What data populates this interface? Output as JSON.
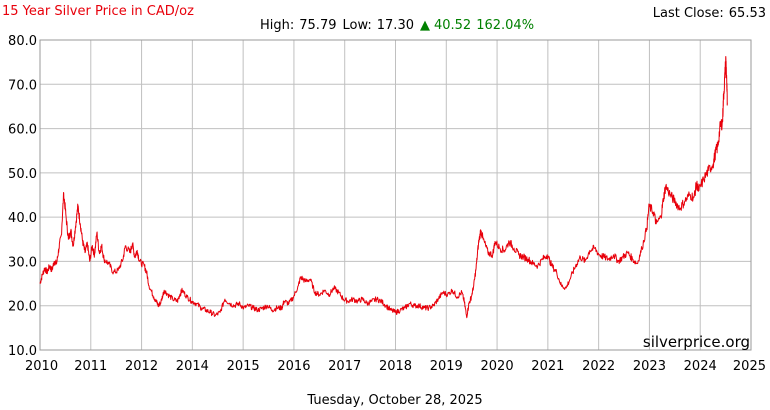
{
  "header": {
    "title": "15 Year Silver Price in CAD/oz",
    "last_close_label": "Last Close:",
    "last_close_value": "65.53",
    "high_label": "High:",
    "high_value": "75.79",
    "low_label": "Low:",
    "low_value": "17.30",
    "change_arrow": "▲",
    "change_value": "40.52",
    "change_percent": "162.04%"
  },
  "footer": {
    "date": "Tuesday, October 28, 2025",
    "source": "silverprice.org"
  },
  "colors": {
    "title": "#e8000b",
    "line": "#e8000b",
    "change_up": "#008000",
    "grid": "#c0c0c0"
  },
  "chart_data": {
    "type": "line",
    "title": "15 Year Silver Price in CAD/oz",
    "xlabel": "",
    "ylabel": "",
    "xlim": [
      2010.0,
      2025.0
    ],
    "ylim": [
      10.0,
      80.0
    ],
    "grid": true,
    "legend": "none",
    "x_ticks": [
      2010,
      2011,
      2012,
      2014,
      2015,
      2016,
      2017,
      2018,
      2019,
      2020,
      2021,
      2022,
      2023,
      2024,
      2025
    ],
    "y_ticks": [
      "10.0",
      "20.0",
      "30.0",
      "40.0",
      "50.0",
      "60.0",
      "70.0",
      "80.0"
    ],
    "series": [
      {
        "values": [
          [
            2010.0,
            25.0
          ],
          [
            2010.05,
            27.0
          ],
          [
            2010.1,
            28.5
          ],
          [
            2010.15,
            27.5
          ],
          [
            2010.2,
            29.0
          ],
          [
            2010.25,
            28.0
          ],
          [
            2010.3,
            30.0
          ],
          [
            2010.35,
            29.5
          ],
          [
            2010.4,
            33.0
          ],
          [
            2010.45,
            36.0
          ],
          [
            2010.5,
            45.5
          ],
          [
            2010.55,
            40.0
          ],
          [
            2010.6,
            35.0
          ],
          [
            2010.65,
            37.0
          ],
          [
            2010.7,
            33.5
          ],
          [
            2010.75,
            38.0
          ],
          [
            2010.8,
            42.5
          ],
          [
            2010.85,
            38.5
          ],
          [
            2010.9,
            34.5
          ],
          [
            2010.95,
            32.0
          ],
          [
            2011.0,
            34.0
          ],
          [
            2011.05,
            30.0
          ],
          [
            2011.1,
            33.5
          ],
          [
            2011.15,
            31.5
          ],
          [
            2011.2,
            36.5
          ],
          [
            2011.25,
            32.0
          ],
          [
            2011.3,
            33.5
          ],
          [
            2011.35,
            30.5
          ],
          [
            2011.45,
            29.5
          ],
          [
            2011.55,
            27.5
          ],
          [
            2011.65,
            28.0
          ],
          [
            2011.75,
            30.5
          ],
          [
            2011.8,
            33.5
          ],
          [
            2011.9,
            32.0
          ],
          [
            2011.95,
            34.0
          ],
          [
            2012.0,
            31.0
          ],
          [
            2012.05,
            32.5
          ],
          [
            2012.1,
            30.0
          ],
          [
            2012.2,
            29.0
          ],
          [
            2012.25,
            27.5
          ],
          [
            2012.3,
            24.5
          ],
          [
            2012.4,
            22.0
          ],
          [
            2012.45,
            21.0
          ],
          [
            2012.5,
            20.0
          ],
          [
            2012.55,
            20.8
          ],
          [
            2012.62,
            23.5
          ],
          [
            2012.7,
            22.5
          ],
          [
            2012.8,
            21.5
          ],
          [
            2012.9,
            21.0
          ],
          [
            2012.95,
            22.5
          ],
          [
            2013.0,
            23.5
          ],
          [
            2013.1,
            22.0
          ],
          [
            2013.2,
            21.0
          ],
          [
            2013.3,
            20.5
          ],
          [
            2013.4,
            19.5
          ],
          [
            2013.5,
            19.0
          ],
          [
            2013.6,
            18.5
          ],
          [
            2013.7,
            17.8
          ],
          [
            2013.8,
            18.5
          ],
          [
            2013.9,
            21.5
          ],
          [
            2014.0,
            20.5
          ],
          [
            2014.1,
            20.0
          ],
          [
            2014.2,
            20.5
          ],
          [
            2014.3,
            19.5
          ],
          [
            2014.4,
            20.0
          ],
          [
            2014.5,
            19.5
          ],
          [
            2014.6,
            19.0
          ],
          [
            2014.7,
            19.5
          ],
          [
            2014.8,
            20.0
          ],
          [
            2014.9,
            19.0
          ],
          [
            2015.0,
            19.5
          ],
          [
            2015.1,
            19.5
          ],
          [
            2015.15,
            21.0
          ],
          [
            2015.25,
            20.5
          ],
          [
            2015.35,
            22.0
          ],
          [
            2015.45,
            24.5
          ],
          [
            2015.5,
            26.5
          ],
          [
            2015.6,
            25.5
          ],
          [
            2015.7,
            26.0
          ],
          [
            2015.8,
            23.0
          ],
          [
            2015.9,
            22.5
          ],
          [
            2016.0,
            23.5
          ],
          [
            2016.1,
            22.5
          ],
          [
            2016.2,
            24.0
          ],
          [
            2016.3,
            23.0
          ],
          [
            2016.4,
            21.5
          ],
          [
            2016.5,
            21.0
          ],
          [
            2016.6,
            21.5
          ],
          [
            2016.7,
            21.0
          ],
          [
            2016.8,
            21.5
          ],
          [
            2016.9,
            20.5
          ],
          [
            2017.0,
            21.0
          ],
          [
            2017.1,
            21.5
          ],
          [
            2017.2,
            21.0
          ],
          [
            2017.3,
            20.0
          ],
          [
            2017.4,
            19.0
          ],
          [
            2017.5,
            18.5
          ],
          [
            2017.6,
            19.0
          ],
          [
            2017.7,
            19.5
          ],
          [
            2017.8,
            20.5
          ],
          [
            2017.9,
            20.0
          ],
          [
            2018.0,
            20.0
          ],
          [
            2018.1,
            19.5
          ],
          [
            2018.2,
            19.5
          ],
          [
            2018.3,
            20.0
          ],
          [
            2018.4,
            21.5
          ],
          [
            2018.5,
            23.0
          ],
          [
            2018.6,
            22.5
          ],
          [
            2018.7,
            23.5
          ],
          [
            2018.8,
            22.0
          ],
          [
            2018.9,
            23.0
          ],
          [
            2018.95,
            21.0
          ],
          [
            2019.0,
            17.5
          ],
          [
            2019.05,
            20.5
          ],
          [
            2019.1,
            22.0
          ],
          [
            2019.15,
            24.5
          ],
          [
            2019.2,
            28.5
          ],
          [
            2019.25,
            34.0
          ],
          [
            2019.3,
            37.0
          ],
          [
            2019.35,
            35.0
          ],
          [
            2019.45,
            32.0
          ],
          [
            2019.55,
            31.5
          ],
          [
            2019.6,
            34.5
          ],
          [
            2019.7,
            33.0
          ],
          [
            2019.8,
            32.5
          ],
          [
            2019.9,
            34.5
          ],
          [
            2020.0,
            33.0
          ],
          [
            2020.1,
            31.5
          ],
          [
            2020.2,
            31.0
          ],
          [
            2020.3,
            30.5
          ],
          [
            2020.4,
            29.5
          ],
          [
            2020.5,
            29.0
          ],
          [
            2020.6,
            30.5
          ],
          [
            2020.7,
            31.5
          ],
          [
            2020.8,
            29.0
          ],
          [
            2020.9,
            27.5
          ],
          [
            2021.0,
            24.5
          ],
          [
            2021.1,
            24.0
          ],
          [
            2021.2,
            26.5
          ],
          [
            2021.3,
            29.0
          ],
          [
            2021.4,
            31.0
          ],
          [
            2021.5,
            30.0
          ],
          [
            2021.6,
            32.5
          ],
          [
            2021.7,
            33.0
          ],
          [
            2021.8,
            31.5
          ],
          [
            2021.9,
            31.0
          ],
          [
            2022.0,
            30.5
          ],
          [
            2022.1,
            31.5
          ],
          [
            2022.2,
            30.0
          ],
          [
            2022.3,
            31.0
          ],
          [
            2022.4,
            32.0
          ],
          [
            2022.5,
            30.5
          ],
          [
            2022.6,
            29.5
          ],
          [
            2022.7,
            33.0
          ],
          [
            2022.8,
            37.5
          ],
          [
            2022.85,
            42.5
          ],
          [
            2022.95,
            41.0
          ],
          [
            2023.0,
            38.5
          ],
          [
            2023.1,
            40.0
          ],
          [
            2023.15,
            44.0
          ],
          [
            2023.2,
            47.0
          ],
          [
            2023.3,
            45.0
          ],
          [
            2023.4,
            43.5
          ],
          [
            2023.5,
            42.0
          ],
          [
            2023.6,
            43.5
          ],
          [
            2023.7,
            45.0
          ],
          [
            2023.8,
            44.5
          ],
          [
            2023.85,
            47.5
          ],
          [
            2023.9,
            46.0
          ],
          [
            2024.0,
            48.5
          ],
          [
            2024.1,
            50.5
          ],
          [
            2024.2,
            52.0
          ],
          [
            2024.25,
            54.5
          ],
          [
            2024.3,
            56.0
          ],
          [
            2024.35,
            60.5
          ],
          [
            2024.4,
            61.5
          ],
          [
            2024.42,
            67.0
          ],
          [
            2024.45,
            72.0
          ],
          [
            2024.47,
            75.8
          ],
          [
            2024.49,
            69.5
          ],
          [
            2024.5,
            65.5
          ]
        ]
      }
    ]
  }
}
